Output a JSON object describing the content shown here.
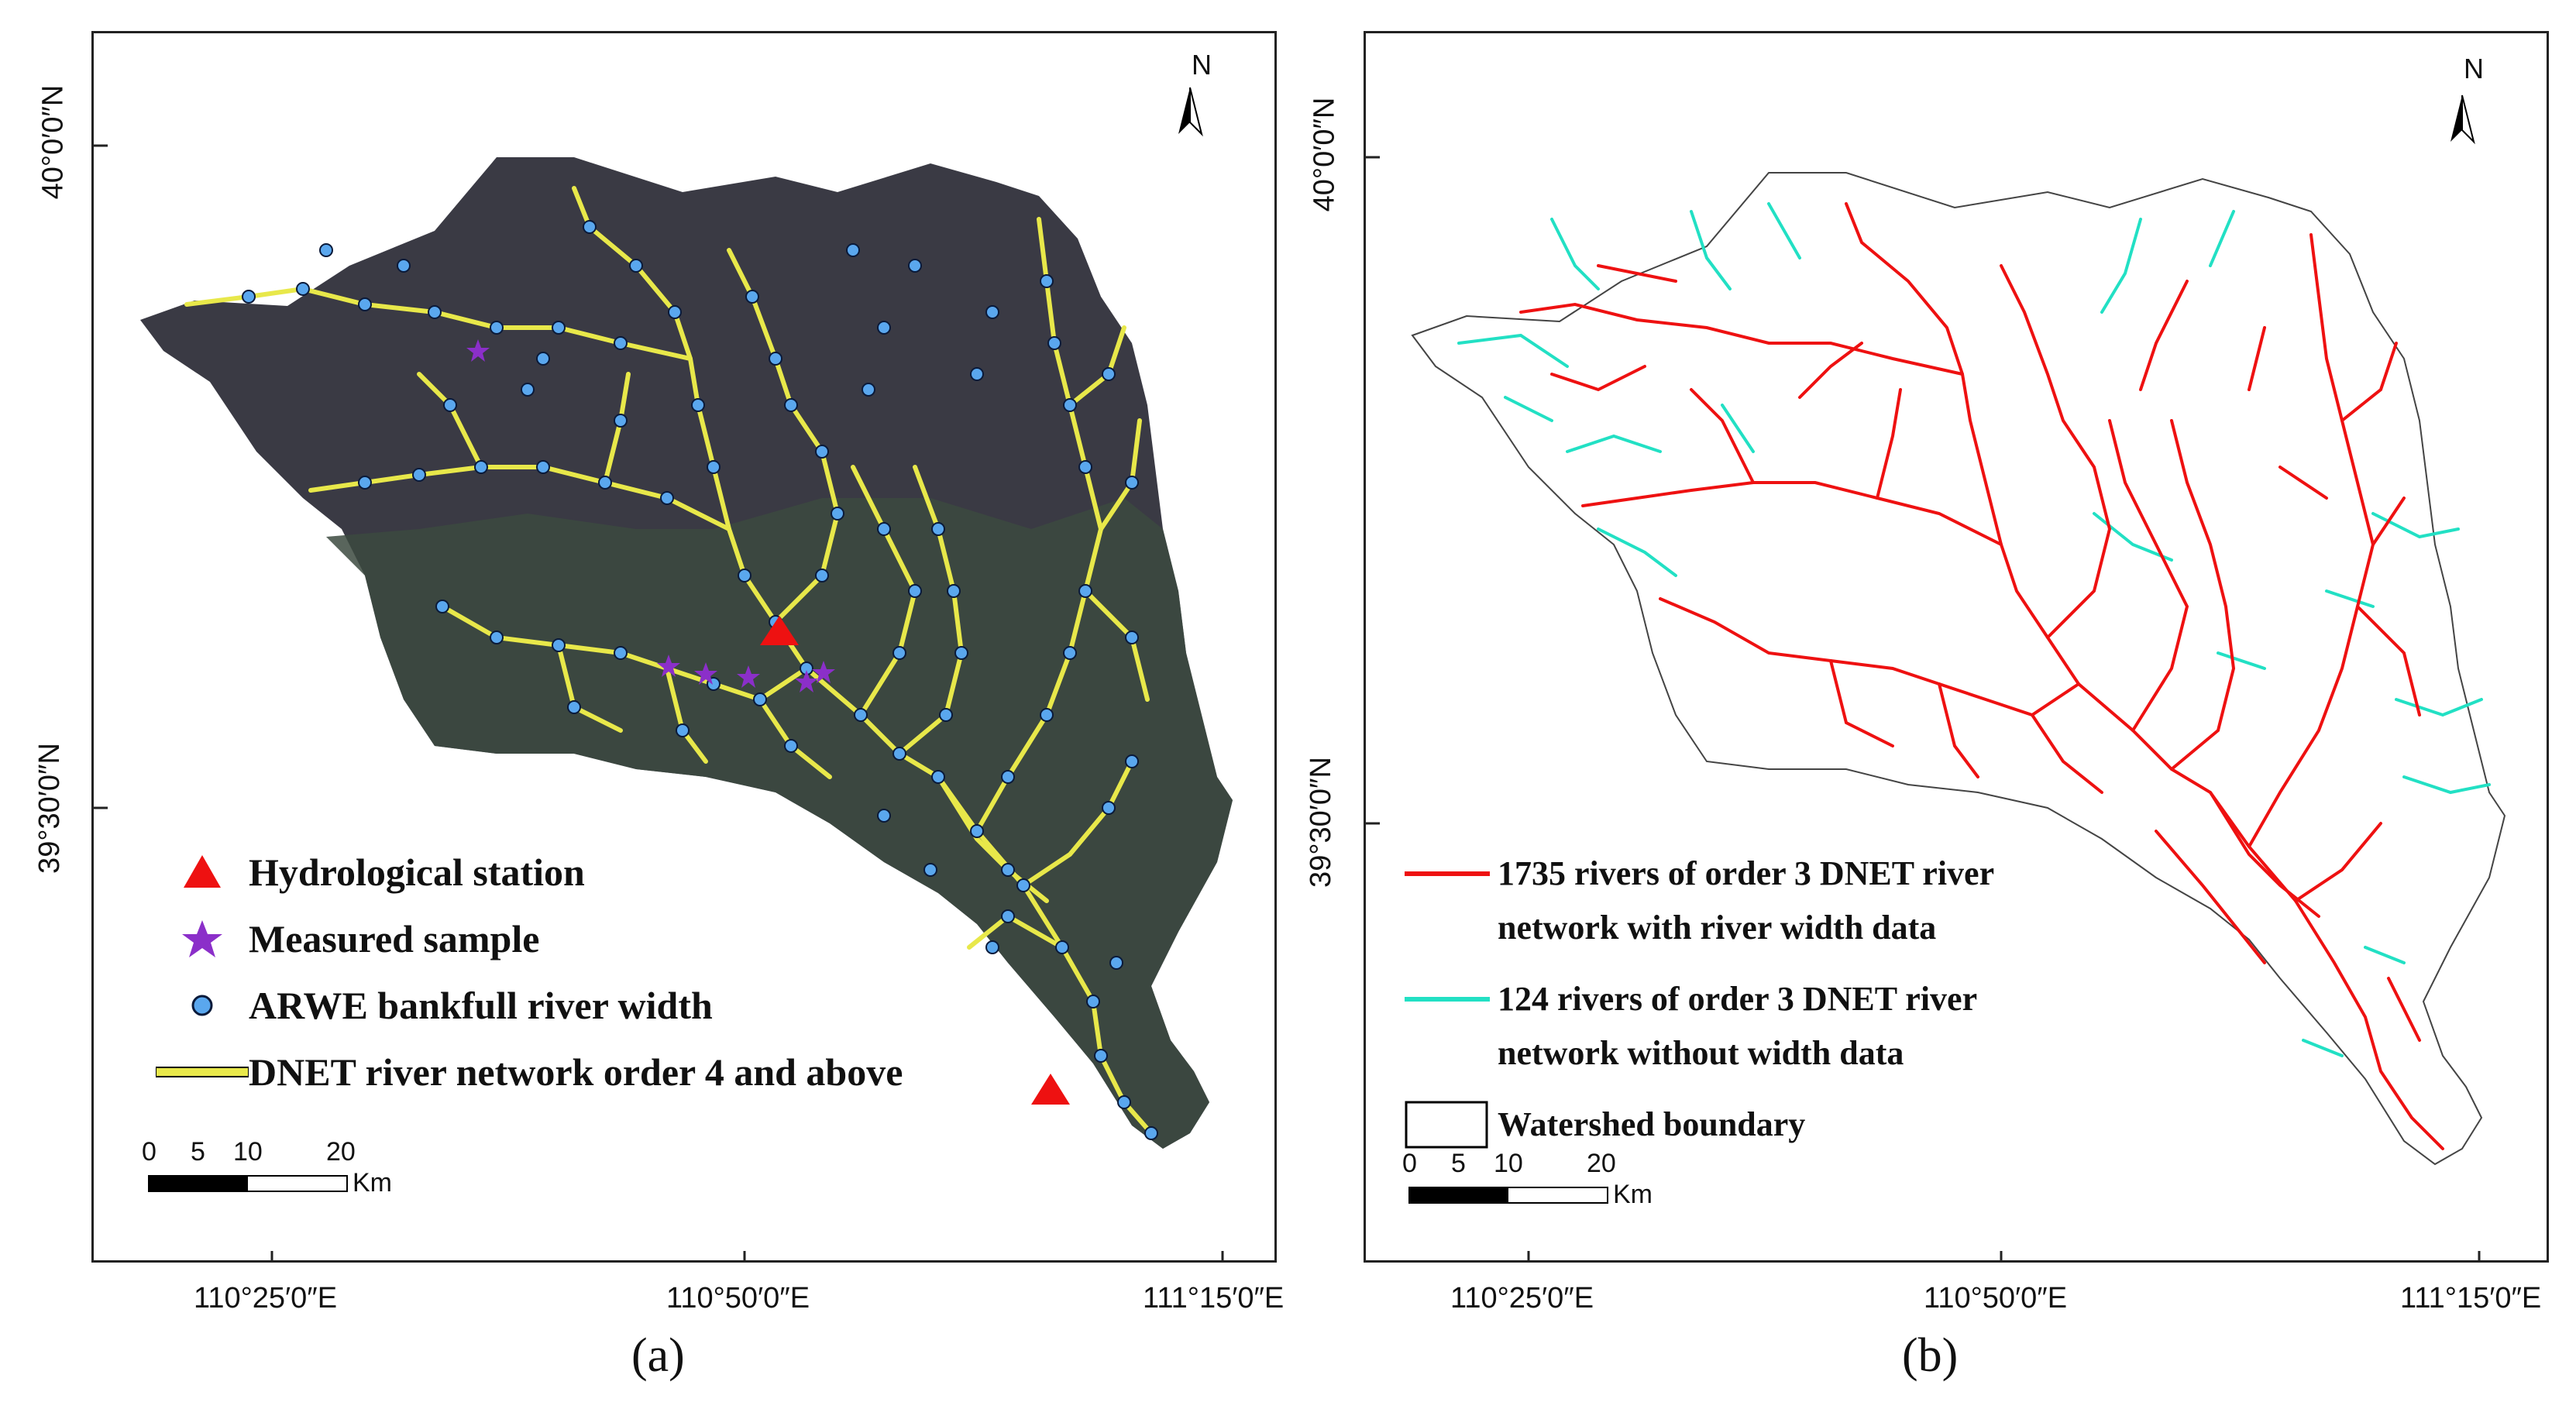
{
  "panel_a": {
    "label": "(a)",
    "lat_labels": [
      "40°0′0″N",
      "39°30′0″N"
    ],
    "lon_labels": [
      "110°25′0″E",
      "110°50′0″E",
      "111°15′0″E"
    ],
    "north": "N",
    "legend": [
      {
        "symbol": "red-triangle-icon",
        "label": "Hydrological station"
      },
      {
        "symbol": "purple-star-icon",
        "label": "Measured sample"
      },
      {
        "symbol": "blue-dot-icon",
        "label": "ARWE bankfull river width"
      },
      {
        "symbol": "yellow-line-icon",
        "label": "DNET river network order 4 and above"
      }
    ],
    "scale": {
      "ticks": [
        "0",
        "5",
        "10",
        "20"
      ],
      "unit": "Km"
    }
  },
  "panel_b": {
    "label": "(b)",
    "lat_labels": [
      "40°0′0″N",
      "39°30′0″N"
    ],
    "lon_labels": [
      "110°25′0″E",
      "110°50′0″E",
      "111°15′0″E"
    ],
    "north": "N",
    "legend": [
      {
        "symbol": "red-line-icon",
        "lines": [
          "1735 rivers of  order 3 DNET river",
          "network with river width data"
        ]
      },
      {
        "symbol": "cyan-line-icon",
        "lines": [
          "124 rivers of  order 3 DNET river",
          "network without width data"
        ]
      },
      {
        "symbol": "boundary-box-icon",
        "lines": [
          "Watershed boundary"
        ]
      }
    ],
    "scale": {
      "ticks": [
        "0",
        "5",
        "10",
        "20"
      ],
      "unit": "Km"
    }
  },
  "colors": {
    "station": "#ee1111",
    "sample": "#8b2fc9",
    "width_dot": "#5aa7ee",
    "network_a": "#e8e84a",
    "river_with_width": "#ee1111",
    "river_without_width": "#22e0c4",
    "imagery_dark": "#3a3a44",
    "imagery_green": "#3c4a40"
  }
}
